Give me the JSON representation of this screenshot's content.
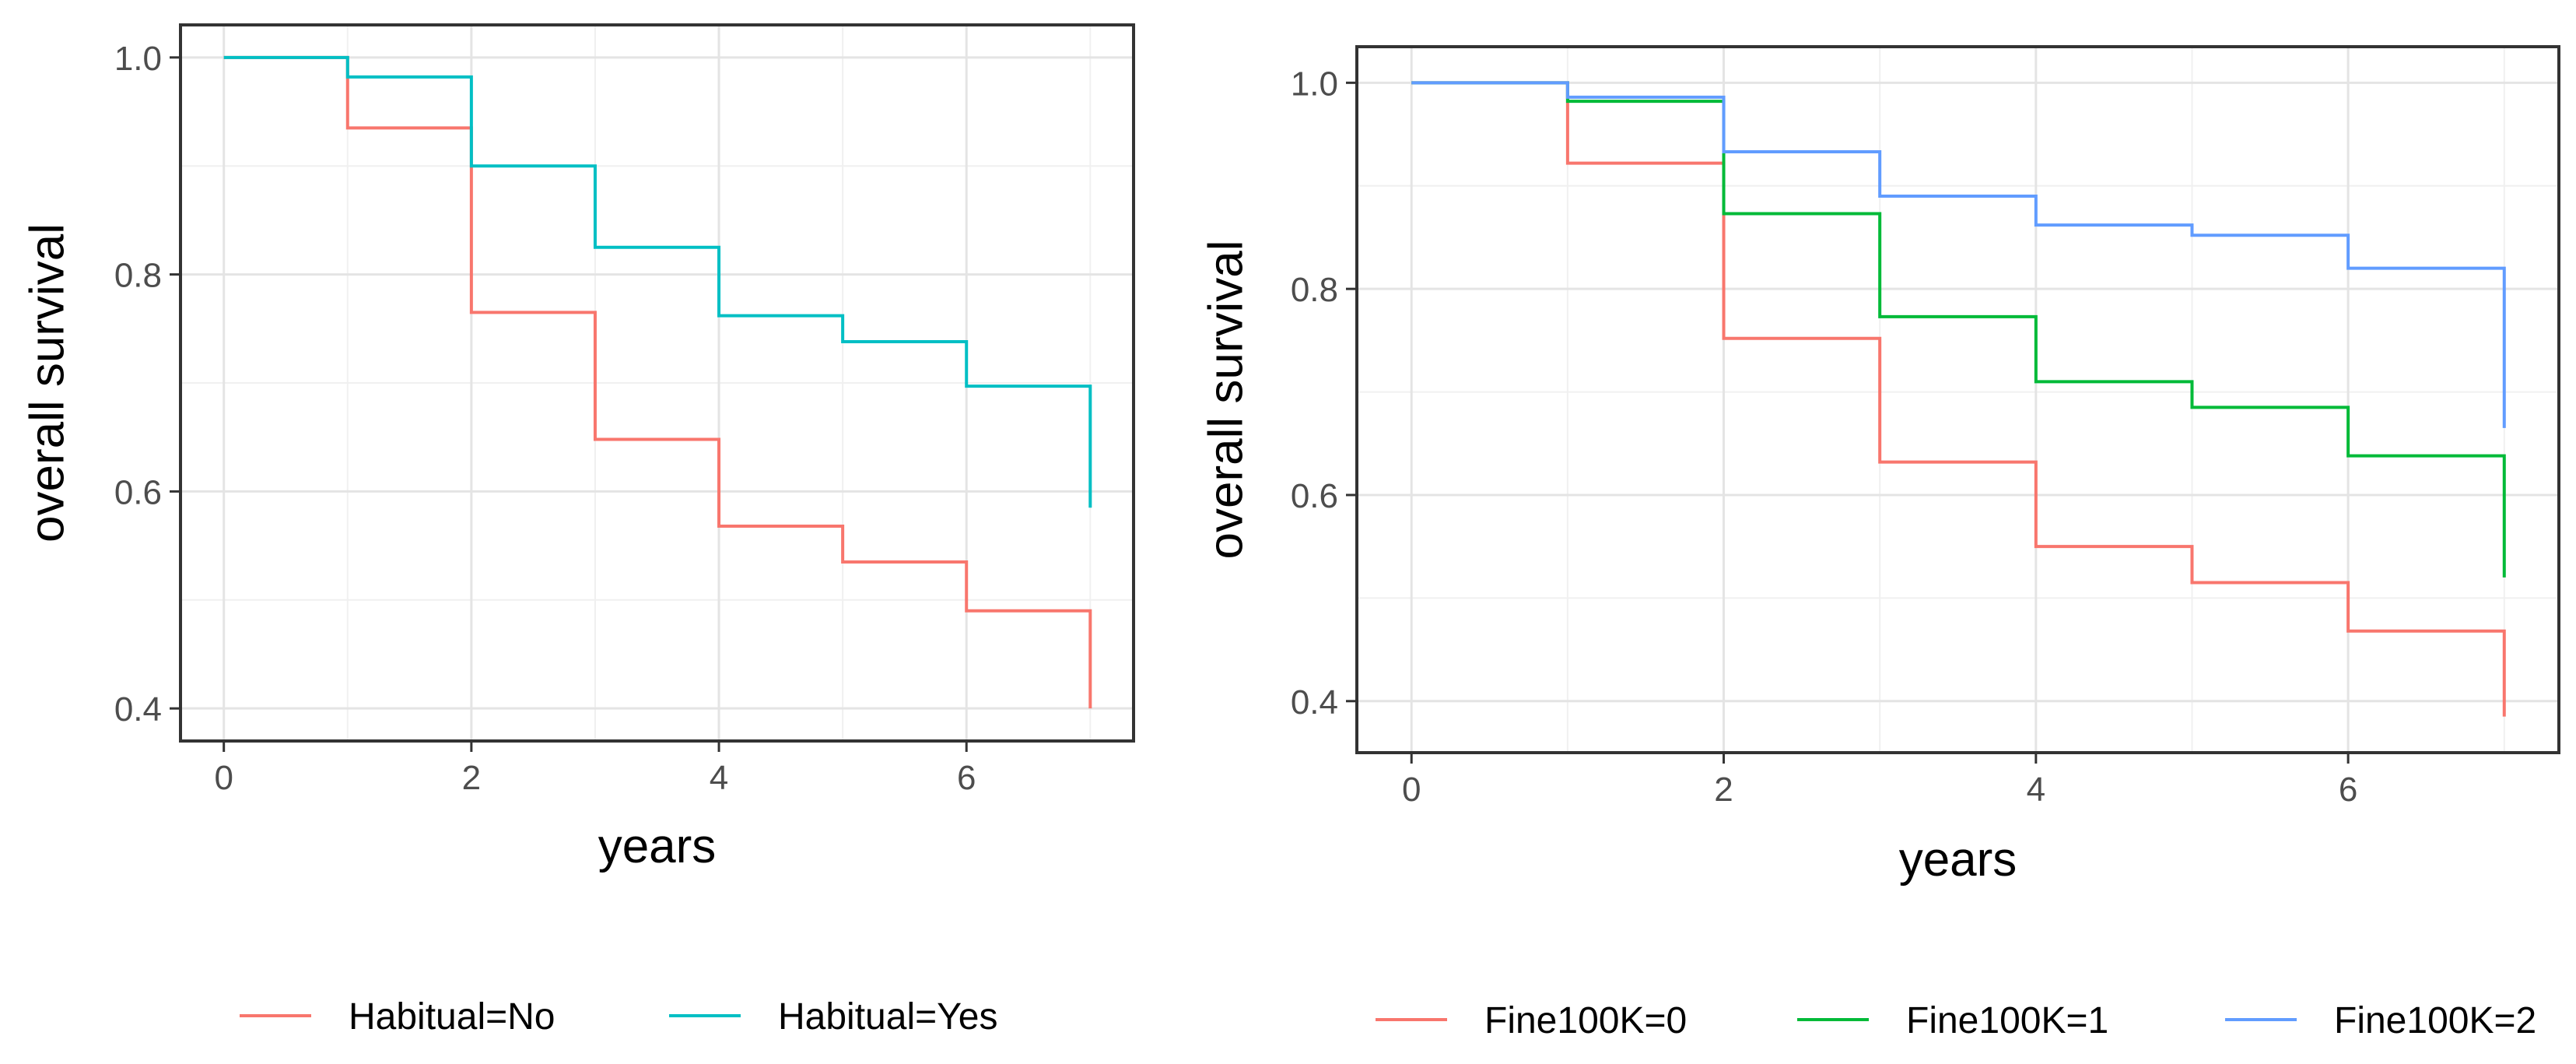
{
  "chart_data": [
    {
      "type": "line",
      "step": true,
      "title": "",
      "xlabel": "years",
      "ylabel": "overall survival",
      "xlim": [
        -0.35,
        7.35
      ],
      "ylim": [
        0.37,
        1.03
      ],
      "xticks": [
        0,
        2,
        4,
        6
      ],
      "yticks": [
        0.4,
        0.6,
        0.8,
        1.0
      ],
      "xtick_labels": [
        "0",
        "2",
        "4",
        "6"
      ],
      "ytick_labels": [
        "0.4",
        "0.6",
        "0.8",
        "1.0"
      ],
      "grid": true,
      "legend_position": "bottom",
      "series": [
        {
          "name": "Habitual=No",
          "color": "#F8766D",
          "x": [
            0,
            1,
            2,
            3,
            4,
            5,
            6,
            7
          ],
          "y": [
            1.0,
            0.935,
            0.765,
            0.648,
            0.568,
            0.535,
            0.49,
            0.4
          ]
        },
        {
          "name": "Habitual=Yes",
          "color": "#00BFC4",
          "x": [
            0,
            1,
            2,
            3,
            4,
            5,
            6,
            7
          ],
          "y": [
            1.0,
            0.982,
            0.9,
            0.825,
            0.762,
            0.738,
            0.697,
            0.585
          ]
        }
      ]
    },
    {
      "type": "line",
      "step": true,
      "title": "",
      "xlabel": "years",
      "ylabel": "overall survival",
      "xlim": [
        -0.35,
        7.35
      ],
      "ylim": [
        0.35,
        1.035
      ],
      "xticks": [
        0,
        2,
        4,
        6
      ],
      "yticks": [
        0.4,
        0.6,
        0.8,
        1.0
      ],
      "xtick_labels": [
        "0",
        "2",
        "4",
        "6"
      ],
      "ytick_labels": [
        "0.4",
        "0.6",
        "0.8",
        "1.0"
      ],
      "grid": true,
      "legend_position": "bottom",
      "series": [
        {
          "name": "Fine100K=0",
          "color": "#F8766D",
          "x": [
            0,
            1,
            2,
            3,
            4,
            5,
            6,
            7
          ],
          "y": [
            1.0,
            0.922,
            0.752,
            0.632,
            0.55,
            0.515,
            0.468,
            0.385
          ]
        },
        {
          "name": "Fine100K=1",
          "color": "#00BA38",
          "x": [
            0,
            1,
            2,
            3,
            4,
            5,
            6,
            7
          ],
          "y": [
            1.0,
            0.982,
            0.873,
            0.773,
            0.71,
            0.685,
            0.638,
            0.52
          ]
        },
        {
          "name": "Fine100K=2",
          "color": "#619CFF",
          "x": [
            0,
            1,
            2,
            3,
            4,
            5,
            6,
            7
          ],
          "y": [
            1.0,
            0.986,
            0.933,
            0.89,
            0.862,
            0.852,
            0.82,
            0.665
          ]
        }
      ]
    }
  ]
}
